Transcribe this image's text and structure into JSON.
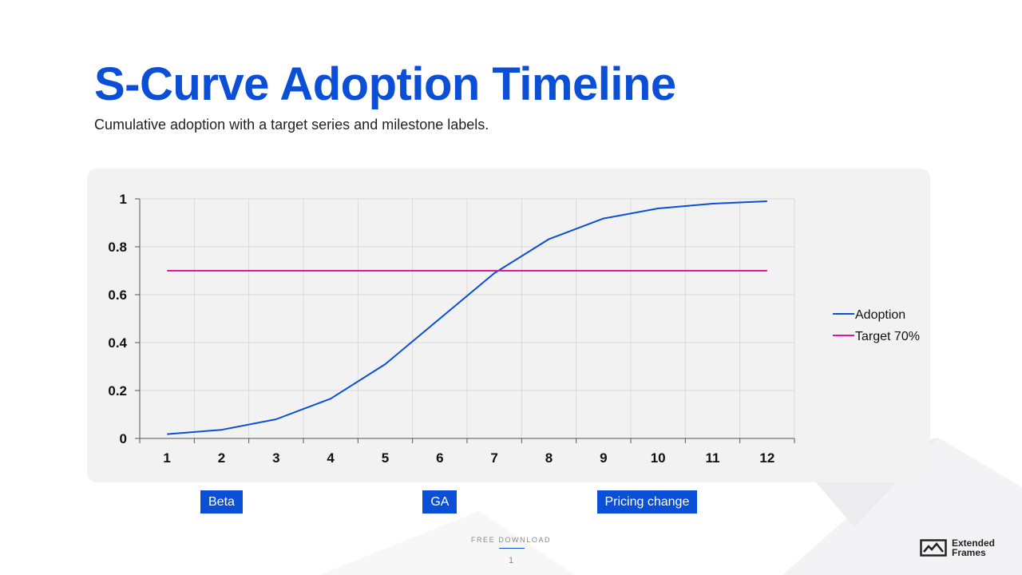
{
  "slide": {
    "title": "S-Curve Adoption Timeline",
    "subtitle": "Cumulative adoption with a target series and milestone labels.",
    "milestones": [
      {
        "label": "Beta",
        "x": 2
      },
      {
        "label": "GA",
        "x": 6
      },
      {
        "label": "Pricing change",
        "x": 9.8
      }
    ],
    "footer": {
      "label": "FREE DOWNLOAD",
      "page_number": "1",
      "logo_line1": "Extended",
      "logo_line2": "Frames"
    },
    "colors": {
      "accent": "#0a4fd6",
      "panel": "#f2f2f2"
    }
  },
  "chart_data": {
    "type": "line",
    "x": [
      1,
      2,
      3,
      4,
      5,
      6,
      7,
      8,
      9,
      10,
      11,
      12
    ],
    "series": [
      {
        "name": "Adoption",
        "color": "#0a4fd6",
        "values": [
          0.018,
          0.036,
          0.08,
          0.166,
          0.31,
          0.5,
          0.69,
          0.832,
          0.918,
          0.96,
          0.98,
          0.99
        ]
      },
      {
        "name": "Target 70%",
        "color": "#e0169e",
        "values": [
          0.7,
          0.7,
          0.7,
          0.7,
          0.7,
          0.7,
          0.7,
          0.7,
          0.7,
          0.7,
          0.7,
          0.7
        ]
      }
    ],
    "x_ticks": [
      "1",
      "2",
      "3",
      "4",
      "5",
      "6",
      "7",
      "8",
      "9",
      "10",
      "11",
      "12"
    ],
    "y_ticks": [
      "0",
      "0.2",
      "0.4",
      "0.6",
      "0.8",
      "1"
    ],
    "ylim": [
      0,
      1
    ],
    "grid": true,
    "legend": "right"
  }
}
